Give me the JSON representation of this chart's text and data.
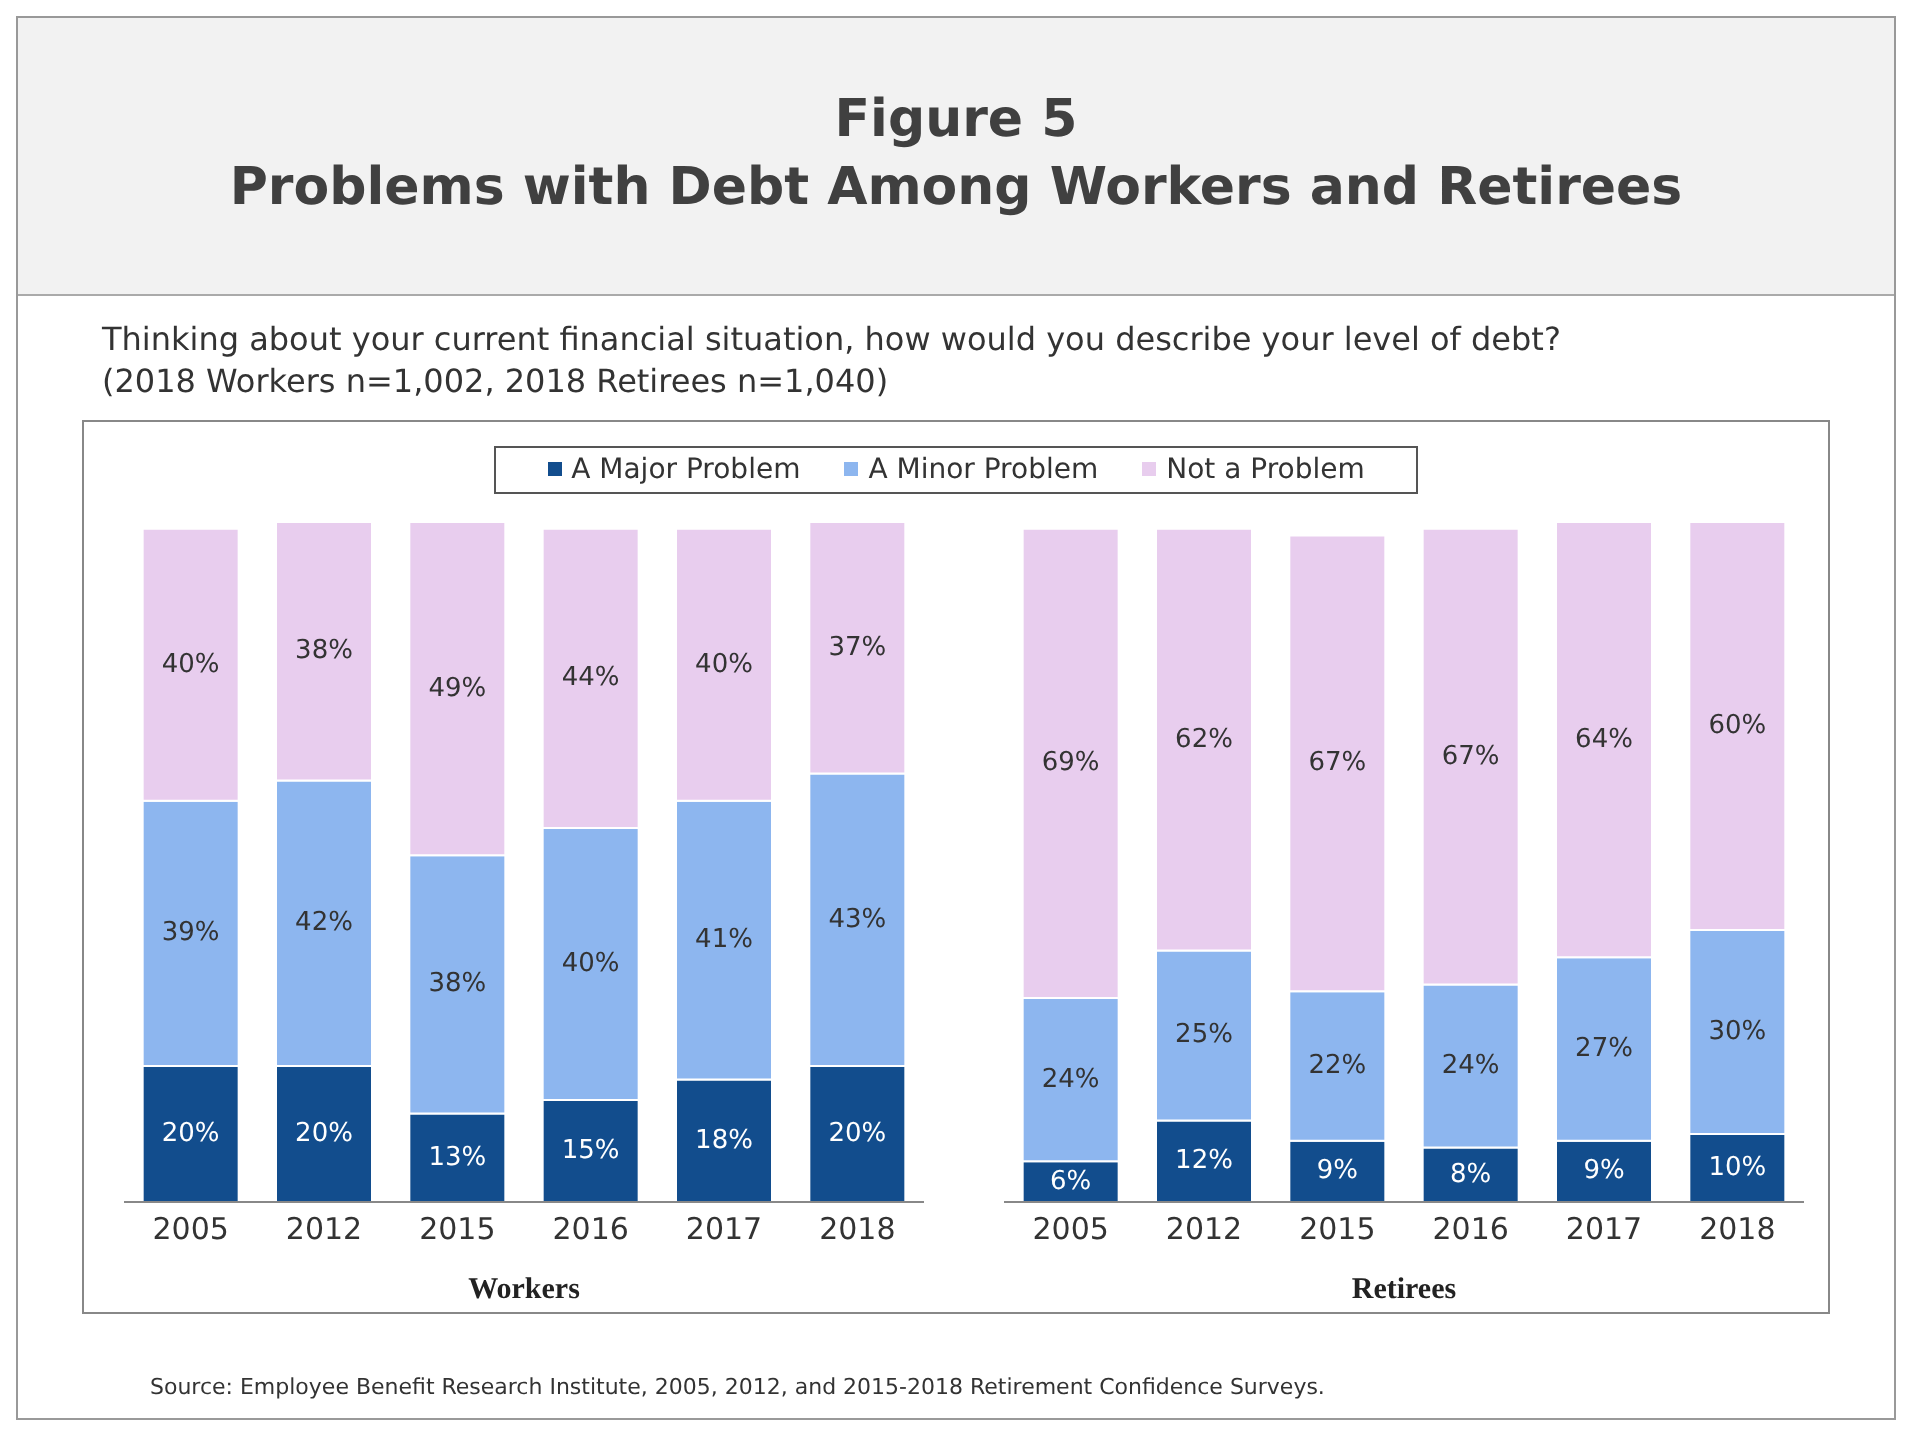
{
  "chart_data": [
    {
      "type": "bar",
      "title": "Figure 5\nProblems with Debt Among Workers and Retirees",
      "subtitle": "Thinking about your current financial situation, how would you describe your level of debt?\n(2018 Workers n=1,002, 2018 Retirees n=1,040)",
      "xlabel": "Workers",
      "stacked": true,
      "legend": "top",
      "categories": [
        "2005",
        "2012",
        "2015",
        "2016",
        "2017",
        "2018"
      ],
      "series": [
        {
          "name": "A Major Problem",
          "color": "#124d8d",
          "values": [
            20,
            20,
            13,
            15,
            18,
            20
          ],
          "value_labels": [
            "20%",
            "20%",
            "13%",
            "15%",
            "18%",
            "20%"
          ]
        },
        {
          "name": "A Minor Problem",
          "color": "#8db6ef",
          "values": [
            39,
            42,
            38,
            40,
            41,
            43
          ],
          "value_labels": [
            "39%",
            "42%",
            "38%",
            "40%",
            "41%",
            "43%"
          ]
        },
        {
          "name": "Not a Problem",
          "color": "#e8cdee",
          "values": [
            40,
            38,
            49,
            44,
            40,
            37
          ],
          "value_labels": [
            "40%",
            "38%",
            "49%",
            "44%",
            "40%",
            "37%"
          ]
        }
      ]
    },
    {
      "type": "bar",
      "xlabel": "Retirees",
      "stacked": true,
      "categories": [
        "2005",
        "2012",
        "2015",
        "2016",
        "2017",
        "2018"
      ],
      "annotations": [
        "Source:  Employee Benefit Research Institute, 2005, 2012, and 2015-2018 Retirement Confidence Surveys."
      ],
      "series": [
        {
          "color": "#124d8d",
          "values": [
            6,
            12,
            9,
            8,
            9,
            10
          ],
          "value_labels": [
            "6%",
            "12%",
            "9%",
            "8%",
            "9%",
            "10%"
          ]
        },
        {
          "color": "#8db6ef",
          "values": [
            24,
            25,
            22,
            24,
            27,
            30
          ],
          "value_labels": [
            "24%",
            "25%",
            "22%",
            "24%",
            "27%",
            "30%"
          ]
        },
        {
          "color": "#e8cdee",
          "values": [
            69,
            62,
            67,
            67,
            64,
            60
          ],
          "value_labels": [
            "69%",
            "62%",
            "67%",
            "67%",
            "64%",
            "60%"
          ]
        }
      ]
    }
  ]
}
